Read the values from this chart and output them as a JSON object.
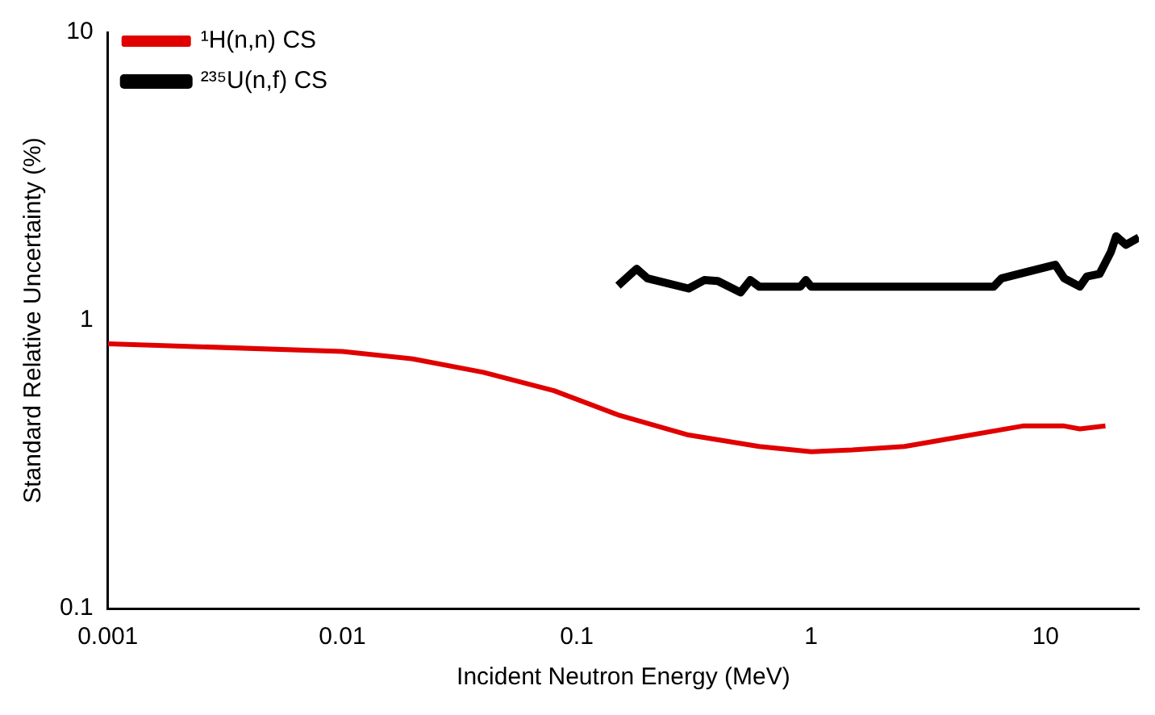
{
  "chart_data": {
    "type": "line",
    "xlabel": "Incident Neutron Energy (MeV)",
    "ylabel": "Standard Relative Uncertainty (%)",
    "log": "xy",
    "grid": false,
    "legend": "top left",
    "marker": "none",
    "line_style": "solid",
    "xlim": [
      0.001,
      25
    ],
    "xticks": [
      0.001,
      0.01,
      0.1,
      1,
      10
    ],
    "ylim": [
      0.1,
      10
    ],
    "yticks": [
      0.1,
      1,
      10
    ],
    "series": [
      {
        "name": "¹H(n,n) CS",
        "color": "#e00000",
        "x": [
          0.001,
          0.01,
          0.02,
          0.04,
          0.08,
          0.15,
          0.3,
          0.6,
          1,
          1.5,
          2.5,
          4,
          8,
          12,
          14,
          18
        ],
        "values": [
          0.83,
          0.78,
          0.735,
          0.66,
          0.57,
          0.47,
          0.4,
          0.365,
          0.35,
          0.355,
          0.365,
          0.39,
          0.43,
          0.43,
          0.42,
          0.43
        ]
      },
      {
        "name": "²³⁵U(n,f) CS",
        "color": "#000000",
        "x": [
          0.15,
          0.18,
          0.2,
          0.3,
          0.35,
          0.4,
          0.5,
          0.55,
          0.6,
          0.9,
          0.95,
          1,
          6,
          6.5,
          11,
          12,
          14,
          15,
          17,
          19,
          20,
          22,
          25
        ],
        "values": [
          1.32,
          1.51,
          1.4,
          1.29,
          1.38,
          1.37,
          1.25,
          1.38,
          1.31,
          1.31,
          1.38,
          1.31,
          1.31,
          1.4,
          1.56,
          1.4,
          1.31,
          1.42,
          1.45,
          1.73,
          1.96,
          1.83,
          1.94
        ]
      }
    ]
  }
}
